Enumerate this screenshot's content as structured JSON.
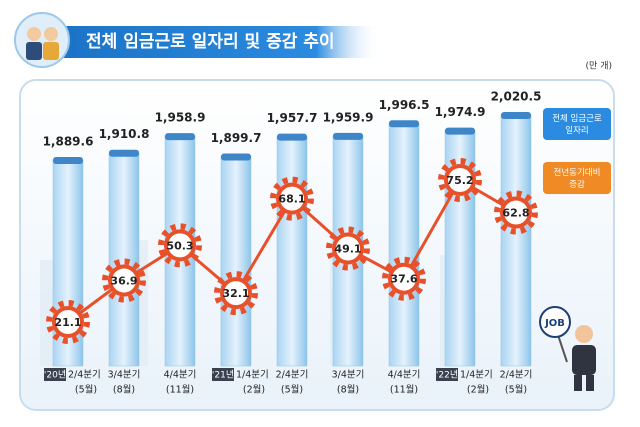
{
  "chart_data": {
    "type": "bar-line",
    "title": "전체 임금근로 일자리 및 증감 추이",
    "unit": "(만 개)",
    "sign_text": "JOB",
    "categories": [
      "2/4분기",
      "3/4분기",
      "4/4분기",
      "1/4분기",
      "2/4분기",
      "3/4분기",
      "4/4분기",
      "1/4분기",
      "2/4분기"
    ],
    "years": [
      "'20년",
      null,
      null,
      "'21년",
      null,
      null,
      null,
      "'22년",
      null
    ],
    "months": [
      "(5월)",
      "(8월)",
      "(11월)",
      "(2월)",
      "(5월)",
      "(8월)",
      "(11월)",
      "(2월)",
      "(5월)"
    ],
    "series": [
      {
        "name": "전체 임금근로 일자리",
        "type": "bar",
        "color": "#8ec4ea",
        "values": [
          1889.6,
          1910.8,
          1958.9,
          1899.7,
          1957.7,
          1959.9,
          1996.5,
          1974.9,
          2020.5
        ],
        "value_labels": [
          "1,889.6",
          "1,910.8",
          "1,958.9",
          "1,899.7",
          "1,957.7",
          "1,959.9",
          "1,996.5",
          "1,974.9",
          "2,020.5"
        ]
      },
      {
        "name": "전년동기대비 증감",
        "type": "line",
        "color": "#e8502a",
        "values": [
          21.1,
          36.9,
          50.3,
          32.1,
          68.1,
          49.1,
          37.6,
          75.2,
          62.8
        ]
      }
    ]
  }
}
